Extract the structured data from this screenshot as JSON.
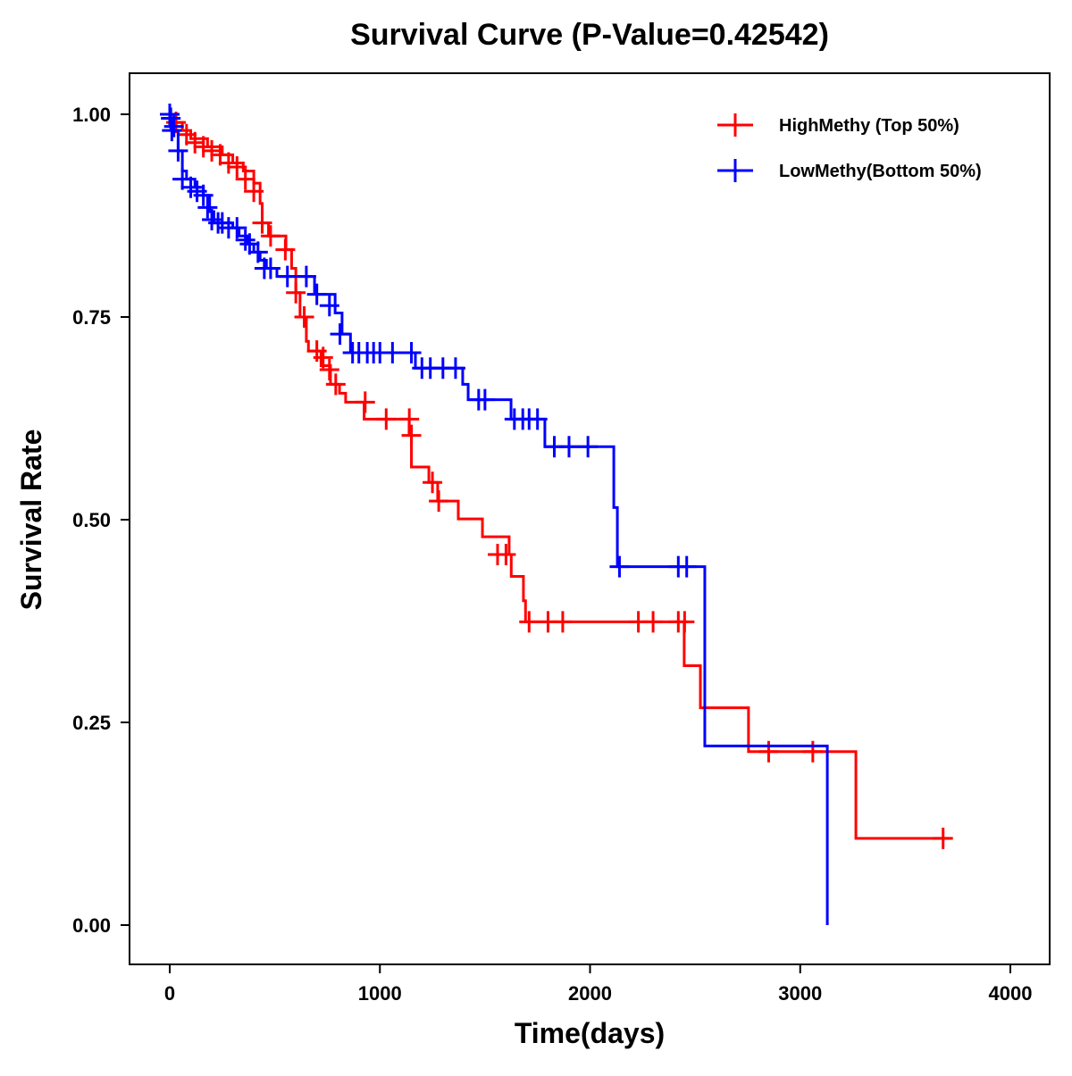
{
  "chart_data": {
    "type": "line",
    "subtype": "kaplan-meier",
    "title": "Survival Curve (P-Value=0.42542)",
    "xlabel": "Time(days)",
    "ylabel": "Survival Rate",
    "xlim": [
      -200,
      4200
    ],
    "ylim": [
      -0.05,
      1.05
    ],
    "xticks": [
      0,
      1000,
      2000,
      3000,
      4000
    ],
    "xtick_labels": [
      "0",
      "1000",
      "2000",
      "3000",
      "4000"
    ],
    "yticks": [
      0,
      0.25,
      0.5,
      0.75,
      1.0
    ],
    "ytick_labels": [
      "0.00",
      "0.25",
      "0.50",
      "0.75",
      "1.00"
    ],
    "grid": false,
    "legend_position": "top-right",
    "series": [
      {
        "name": "HighMethy (Top 50%)",
        "color": "#ff0000",
        "end_time": 3720,
        "steps": [
          [
            0,
            1
          ],
          [
            20,
            0.99
          ],
          [
            60,
            0.98
          ],
          [
            100,
            0.97
          ],
          [
            180,
            0.96
          ],
          [
            250,
            0.95
          ],
          [
            300,
            0.94
          ],
          [
            350,
            0.93
          ],
          [
            400,
            0.915
          ],
          [
            430,
            0.89
          ],
          [
            440,
            0.866
          ],
          [
            470,
            0.85
          ],
          [
            553,
            0.833
          ],
          [
            580,
            0.81
          ],
          [
            600,
            0.78
          ],
          [
            620,
            0.75
          ],
          [
            650,
            0.72
          ],
          [
            660,
            0.708
          ],
          [
            720,
            0.69
          ],
          [
            765,
            0.667
          ],
          [
            808,
            0.656
          ],
          [
            837,
            0.645
          ],
          [
            925,
            0.624
          ],
          [
            1139,
            0.604
          ],
          [
            1150,
            0.565
          ],
          [
            1233,
            0.546
          ],
          [
            1275,
            0.523
          ],
          [
            1373,
            0.501
          ],
          [
            1488,
            0.479
          ],
          [
            1615,
            0.457
          ],
          [
            1625,
            0.43
          ],
          [
            1683,
            0.4
          ],
          [
            1693,
            0.374
          ],
          [
            2448,
            0.32
          ],
          [
            2525,
            0.268
          ],
          [
            2754,
            0.214
          ],
          [
            3265,
            0.107
          ]
        ],
        "censored": [
          [
            30,
            0.99
          ],
          [
            80,
            0.975
          ],
          [
            120,
            0.965
          ],
          [
            160,
            0.96
          ],
          [
            200,
            0.955
          ],
          [
            240,
            0.95
          ],
          [
            280,
            0.94
          ],
          [
            320,
            0.935
          ],
          [
            360,
            0.92
          ],
          [
            400,
            0.905
          ],
          [
            440,
            0.866
          ],
          [
            480,
            0.85
          ],
          [
            550,
            0.833
          ],
          [
            600,
            0.78
          ],
          [
            640,
            0.75
          ],
          [
            700,
            0.708
          ],
          [
            730,
            0.7
          ],
          [
            760,
            0.685
          ],
          [
            790,
            0.667
          ],
          [
            930,
            0.645
          ],
          [
            1030,
            0.624
          ],
          [
            1140,
            0.624
          ],
          [
            1150,
            0.604
          ],
          [
            1250,
            0.546
          ],
          [
            1280,
            0.523
          ],
          [
            1560,
            0.457
          ],
          [
            1600,
            0.457
          ],
          [
            1710,
            0.374
          ],
          [
            1800,
            0.374
          ],
          [
            1870,
            0.374
          ],
          [
            2230,
            0.374
          ],
          [
            2300,
            0.374
          ],
          [
            2420,
            0.374
          ],
          [
            2450,
            0.374
          ],
          [
            2850,
            0.214
          ],
          [
            3060,
            0.214
          ],
          [
            3680,
            0.107
          ]
        ]
      },
      {
        "name": "LowMethy(Bottom 50%)",
        "color": "#0000ff",
        "end_time": 3129,
        "steps": [
          [
            0,
            1
          ],
          [
            5,
            0.99
          ],
          [
            15,
            0.98
          ],
          [
            40,
            0.955
          ],
          [
            60,
            0.93
          ],
          [
            80,
            0.92
          ],
          [
            120,
            0.91
          ],
          [
            160,
            0.9
          ],
          [
            190,
            0.88
          ],
          [
            210,
            0.866
          ],
          [
            300,
            0.86
          ],
          [
            330,
            0.85
          ],
          [
            370,
            0.84
          ],
          [
            400,
            0.83
          ],
          [
            430,
            0.82
          ],
          [
            460,
            0.81
          ],
          [
            510,
            0.8
          ],
          [
            689,
            0.778
          ],
          [
            787,
            0.755
          ],
          [
            820,
            0.729
          ],
          [
            860,
            0.706
          ],
          [
            1169,
            0.687
          ],
          [
            1394,
            0.667
          ],
          [
            1420,
            0.648
          ],
          [
            1624,
            0.624
          ],
          [
            1785,
            0.59
          ],
          [
            2113,
            0.515
          ],
          [
            2130,
            0.442
          ],
          [
            2546,
            0.221
          ],
          [
            3129,
            0
          ]
        ],
        "censored": [
          [
            0,
            1
          ],
          [
            5,
            0.995
          ],
          [
            10,
            0.98
          ],
          [
            20,
            0.985
          ],
          [
            40,
            0.955
          ],
          [
            60,
            0.92
          ],
          [
            100,
            0.91
          ],
          [
            130,
            0.905
          ],
          [
            160,
            0.9
          ],
          [
            180,
            0.885
          ],
          [
            200,
            0.87
          ],
          [
            230,
            0.866
          ],
          [
            250,
            0.866
          ],
          [
            280,
            0.86
          ],
          [
            320,
            0.86
          ],
          [
            360,
            0.845
          ],
          [
            380,
            0.84
          ],
          [
            420,
            0.83
          ],
          [
            450,
            0.81
          ],
          [
            480,
            0.81
          ],
          [
            560,
            0.8
          ],
          [
            650,
            0.8
          ],
          [
            700,
            0.778
          ],
          [
            760,
            0.764
          ],
          [
            810,
            0.729
          ],
          [
            870,
            0.706
          ],
          [
            900,
            0.706
          ],
          [
            940,
            0.706
          ],
          [
            970,
            0.706
          ],
          [
            1000,
            0.706
          ],
          [
            1060,
            0.706
          ],
          [
            1150,
            0.706
          ],
          [
            1200,
            0.687
          ],
          [
            1240,
            0.687
          ],
          [
            1300,
            0.687
          ],
          [
            1360,
            0.687
          ],
          [
            1470,
            0.648
          ],
          [
            1500,
            0.648
          ],
          [
            1640,
            0.624
          ],
          [
            1680,
            0.624
          ],
          [
            1710,
            0.624
          ],
          [
            1750,
            0.624
          ],
          [
            1830,
            0.59
          ],
          [
            1900,
            0.59
          ],
          [
            1990,
            0.59
          ],
          [
            2140,
            0.442
          ],
          [
            2420,
            0.442
          ],
          [
            2460,
            0.442
          ]
        ]
      }
    ]
  }
}
